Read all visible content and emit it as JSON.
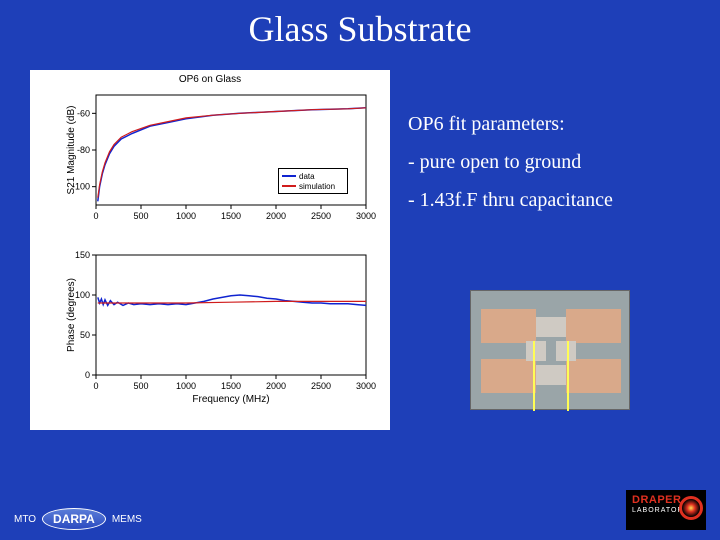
{
  "title": "Glass Substrate",
  "notes": {
    "line1": "OP6 fit parameters:",
    "line2": "- pure open to ground",
    "line3": "- 1.43f.F thru capacitance"
  },
  "chart": {
    "title": "OP6 on Glass",
    "xlabel": "Frequency (MHz)",
    "top": {
      "ylabel": "S21 Magnitude (dB)",
      "xlim": [
        0,
        3000
      ],
      "ylim": [
        -110,
        -50
      ],
      "xticks": [
        0,
        500,
        1000,
        1500,
        2000,
        2500,
        3000
      ],
      "yticks": [
        -100,
        -80,
        -60
      ],
      "data_color": "#1024d0",
      "sim_color": "#d01c1c",
      "data": [
        [
          20,
          -108
        ],
        [
          40,
          -100
        ],
        [
          70,
          -93
        ],
        [
          100,
          -88
        ],
        [
          150,
          -82
        ],
        [
          200,
          -78
        ],
        [
          280,
          -74
        ],
        [
          400,
          -71
        ],
        [
          600,
          -67
        ],
        [
          800,
          -65
        ],
        [
          1000,
          -63
        ],
        [
          1300,
          -61
        ],
        [
          1600,
          -60
        ],
        [
          2000,
          -59
        ],
        [
          2400,
          -58
        ],
        [
          2800,
          -57.5
        ],
        [
          3000,
          -57
        ]
      ],
      "sim": [
        [
          20,
          -106
        ],
        [
          40,
          -99
        ],
        [
          70,
          -92
        ],
        [
          100,
          -87
        ],
        [
          150,
          -81
        ],
        [
          200,
          -77
        ],
        [
          280,
          -73
        ],
        [
          400,
          -70
        ],
        [
          600,
          -66.5
        ],
        [
          800,
          -64.5
        ],
        [
          1000,
          -62.5
        ],
        [
          1300,
          -61
        ],
        [
          1600,
          -60
        ],
        [
          2000,
          -59
        ],
        [
          2400,
          -58
        ],
        [
          2800,
          -57.5
        ],
        [
          3000,
          -57
        ]
      ],
      "legend": {
        "l1": "data",
        "l2": "simulation"
      }
    },
    "bottom": {
      "ylabel": "Phase (degrees)",
      "xlim": [
        0,
        3000
      ],
      "ylim": [
        0,
        150
      ],
      "xticks": [
        0,
        500,
        1000,
        1500,
        2000,
        2500,
        3000
      ],
      "yticks": [
        0,
        50,
        100,
        150
      ],
      "data_color": "#1024d0",
      "sim_color": "#d01c1c",
      "data": [
        [
          20,
          97
        ],
        [
          40,
          90
        ],
        [
          60,
          95
        ],
        [
          80,
          88
        ],
        [
          100,
          94
        ],
        [
          130,
          87
        ],
        [
          160,
          93
        ],
        [
          200,
          88
        ],
        [
          240,
          91
        ],
        [
          300,
          87
        ],
        [
          360,
          90
        ],
        [
          420,
          88
        ],
        [
          500,
          89
        ],
        [
          600,
          88
        ],
        [
          700,
          89
        ],
        [
          800,
          88
        ],
        [
          900,
          89
        ],
        [
          1000,
          88
        ],
        [
          1100,
          90
        ],
        [
          1200,
          92
        ],
        [
          1300,
          95
        ],
        [
          1400,
          97
        ],
        [
          1500,
          99
        ],
        [
          1600,
          100
        ],
        [
          1700,
          99
        ],
        [
          1800,
          98
        ],
        [
          1900,
          96
        ],
        [
          2000,
          95
        ],
        [
          2100,
          93
        ],
        [
          2200,
          92
        ],
        [
          2300,
          91
        ],
        [
          2400,
          90
        ],
        [
          2500,
          90
        ],
        [
          2600,
          89
        ],
        [
          2700,
          89
        ],
        [
          2800,
          89
        ],
        [
          2900,
          88
        ],
        [
          3000,
          87
        ]
      ],
      "sim": [
        [
          20,
          90
        ],
        [
          200,
          90
        ],
        [
          500,
          90
        ],
        [
          1000,
          90
        ],
        [
          1500,
          91
        ],
        [
          2000,
          92
        ],
        [
          2500,
          92
        ],
        [
          3000,
          92
        ]
      ]
    }
  },
  "logos": {
    "left_mto": "MTO",
    "left_darpa": "DARPA",
    "left_mems": "MEMS",
    "right_name": "DRAPER",
    "right_sub": "LABORATORY"
  },
  "colors": {
    "bg": "#1e3fb8",
    "panel_bg": "#ffffff"
  }
}
